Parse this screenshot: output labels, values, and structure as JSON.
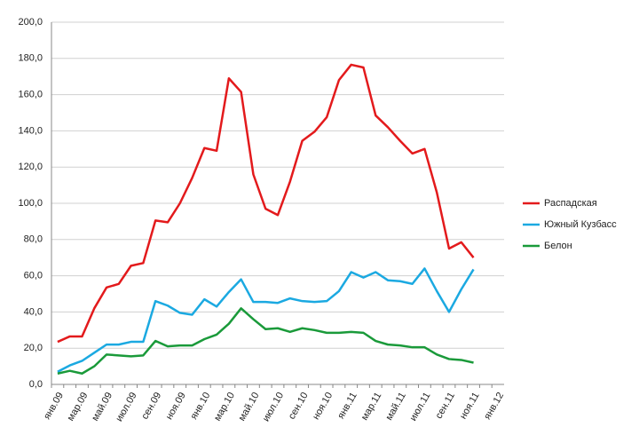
{
  "chart_data": {
    "type": "line",
    "categories": [
      "янв.09",
      null,
      "мар.09",
      null,
      "май.09",
      null,
      "июл.09",
      null,
      "сен.09",
      null,
      "ноя.09",
      null,
      "янв.10",
      null,
      "мар.10",
      null,
      "май.10",
      null,
      "июл.10",
      null,
      "сен.10",
      null,
      "ноя.10",
      null,
      "янв.11",
      null,
      "мар.11",
      null,
      "май.11",
      null,
      "июл.11",
      null,
      "сен.11",
      null,
      "ноя.11",
      null,
      "янв.12"
    ],
    "series": [
      {
        "name": "Распадская",
        "color": "#e31a1c",
        "values": [
          23.5,
          26.5,
          26.5,
          42,
          53.5,
          55.5,
          65.5,
          67,
          90.5,
          89.5,
          100,
          114,
          130.5,
          129,
          169,
          161.5,
          116,
          97,
          93.5,
          112,
          134.5,
          139.5,
          147.5,
          168,
          176.5,
          175,
          148.5,
          142,
          134.5,
          127.5,
          130,
          106,
          75,
          78.5,
          70,
          null,
          null
        ]
      },
      {
        "name": "Южный Кузбасс",
        "color": "#1ba9e1",
        "values": [
          7,
          10.5,
          13,
          17.5,
          22,
          22,
          23.5,
          23.5,
          46,
          43.5,
          39.5,
          38.5,
          47,
          43,
          51,
          58,
          45.5,
          45.5,
          45,
          47.5,
          46,
          45.5,
          46,
          51.5,
          62,
          59,
          62,
          57.5,
          57,
          55.5,
          64,
          51.5,
          40,
          52.5,
          63.5,
          null,
          null
        ]
      },
      {
        "name": "Белон",
        "color": "#1a9a3a",
        "values": [
          6,
          7.5,
          6,
          10,
          16.5,
          16,
          15.5,
          16,
          24,
          21,
          21.5,
          21.5,
          25,
          27.5,
          33.5,
          42,
          36,
          30.5,
          31,
          29,
          31,
          30,
          28.5,
          28.5,
          29,
          28.5,
          24,
          22,
          21.5,
          20.5,
          20.5,
          16.5,
          14,
          13.5,
          12,
          null,
          null
        ]
      }
    ],
    "ylim": [
      0,
      200
    ],
    "yticks": [
      {
        "value": 0,
        "label": "0,0"
      },
      {
        "value": 20,
        "label": "20,0"
      },
      {
        "value": 40,
        "label": "40,0"
      },
      {
        "value": 60,
        "label": "60,0"
      },
      {
        "value": 80,
        "label": "80,0"
      },
      {
        "value": 100,
        "label": "100,0"
      },
      {
        "value": 120,
        "label": "120,0"
      },
      {
        "value": 140,
        "label": "140,0"
      },
      {
        "value": 160,
        "label": "160,0"
      },
      {
        "value": 180,
        "label": "180,0"
      },
      {
        "value": 200,
        "label": "200,0"
      }
    ],
    "grid": true,
    "legend": "right"
  }
}
